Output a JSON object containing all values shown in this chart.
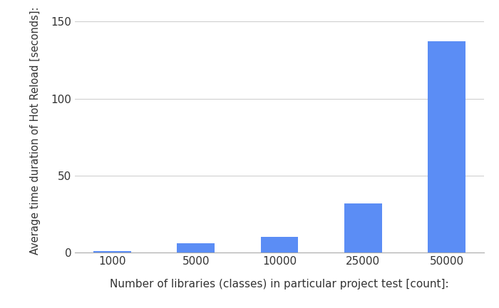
{
  "categories": [
    "1000",
    "5000",
    "10000",
    "25000",
    "50000"
  ],
  "values": [
    1,
    6,
    10,
    32,
    137
  ],
  "bar_color": "#5B8DF5",
  "xlabel": "Number of libraries (classes) in particular project test [count]:",
  "ylabel": "Average time duration of Hot Reload [seconds]:",
  "ylim": [
    0,
    158
  ],
  "yticks": [
    0,
    50,
    100,
    150
  ],
  "background_color": "#ffffff",
  "grid_color": "#d0d0d0",
  "xlabel_fontsize": 11,
  "ylabel_fontsize": 10.5,
  "tick_fontsize": 11,
  "bar_width": 0.45
}
